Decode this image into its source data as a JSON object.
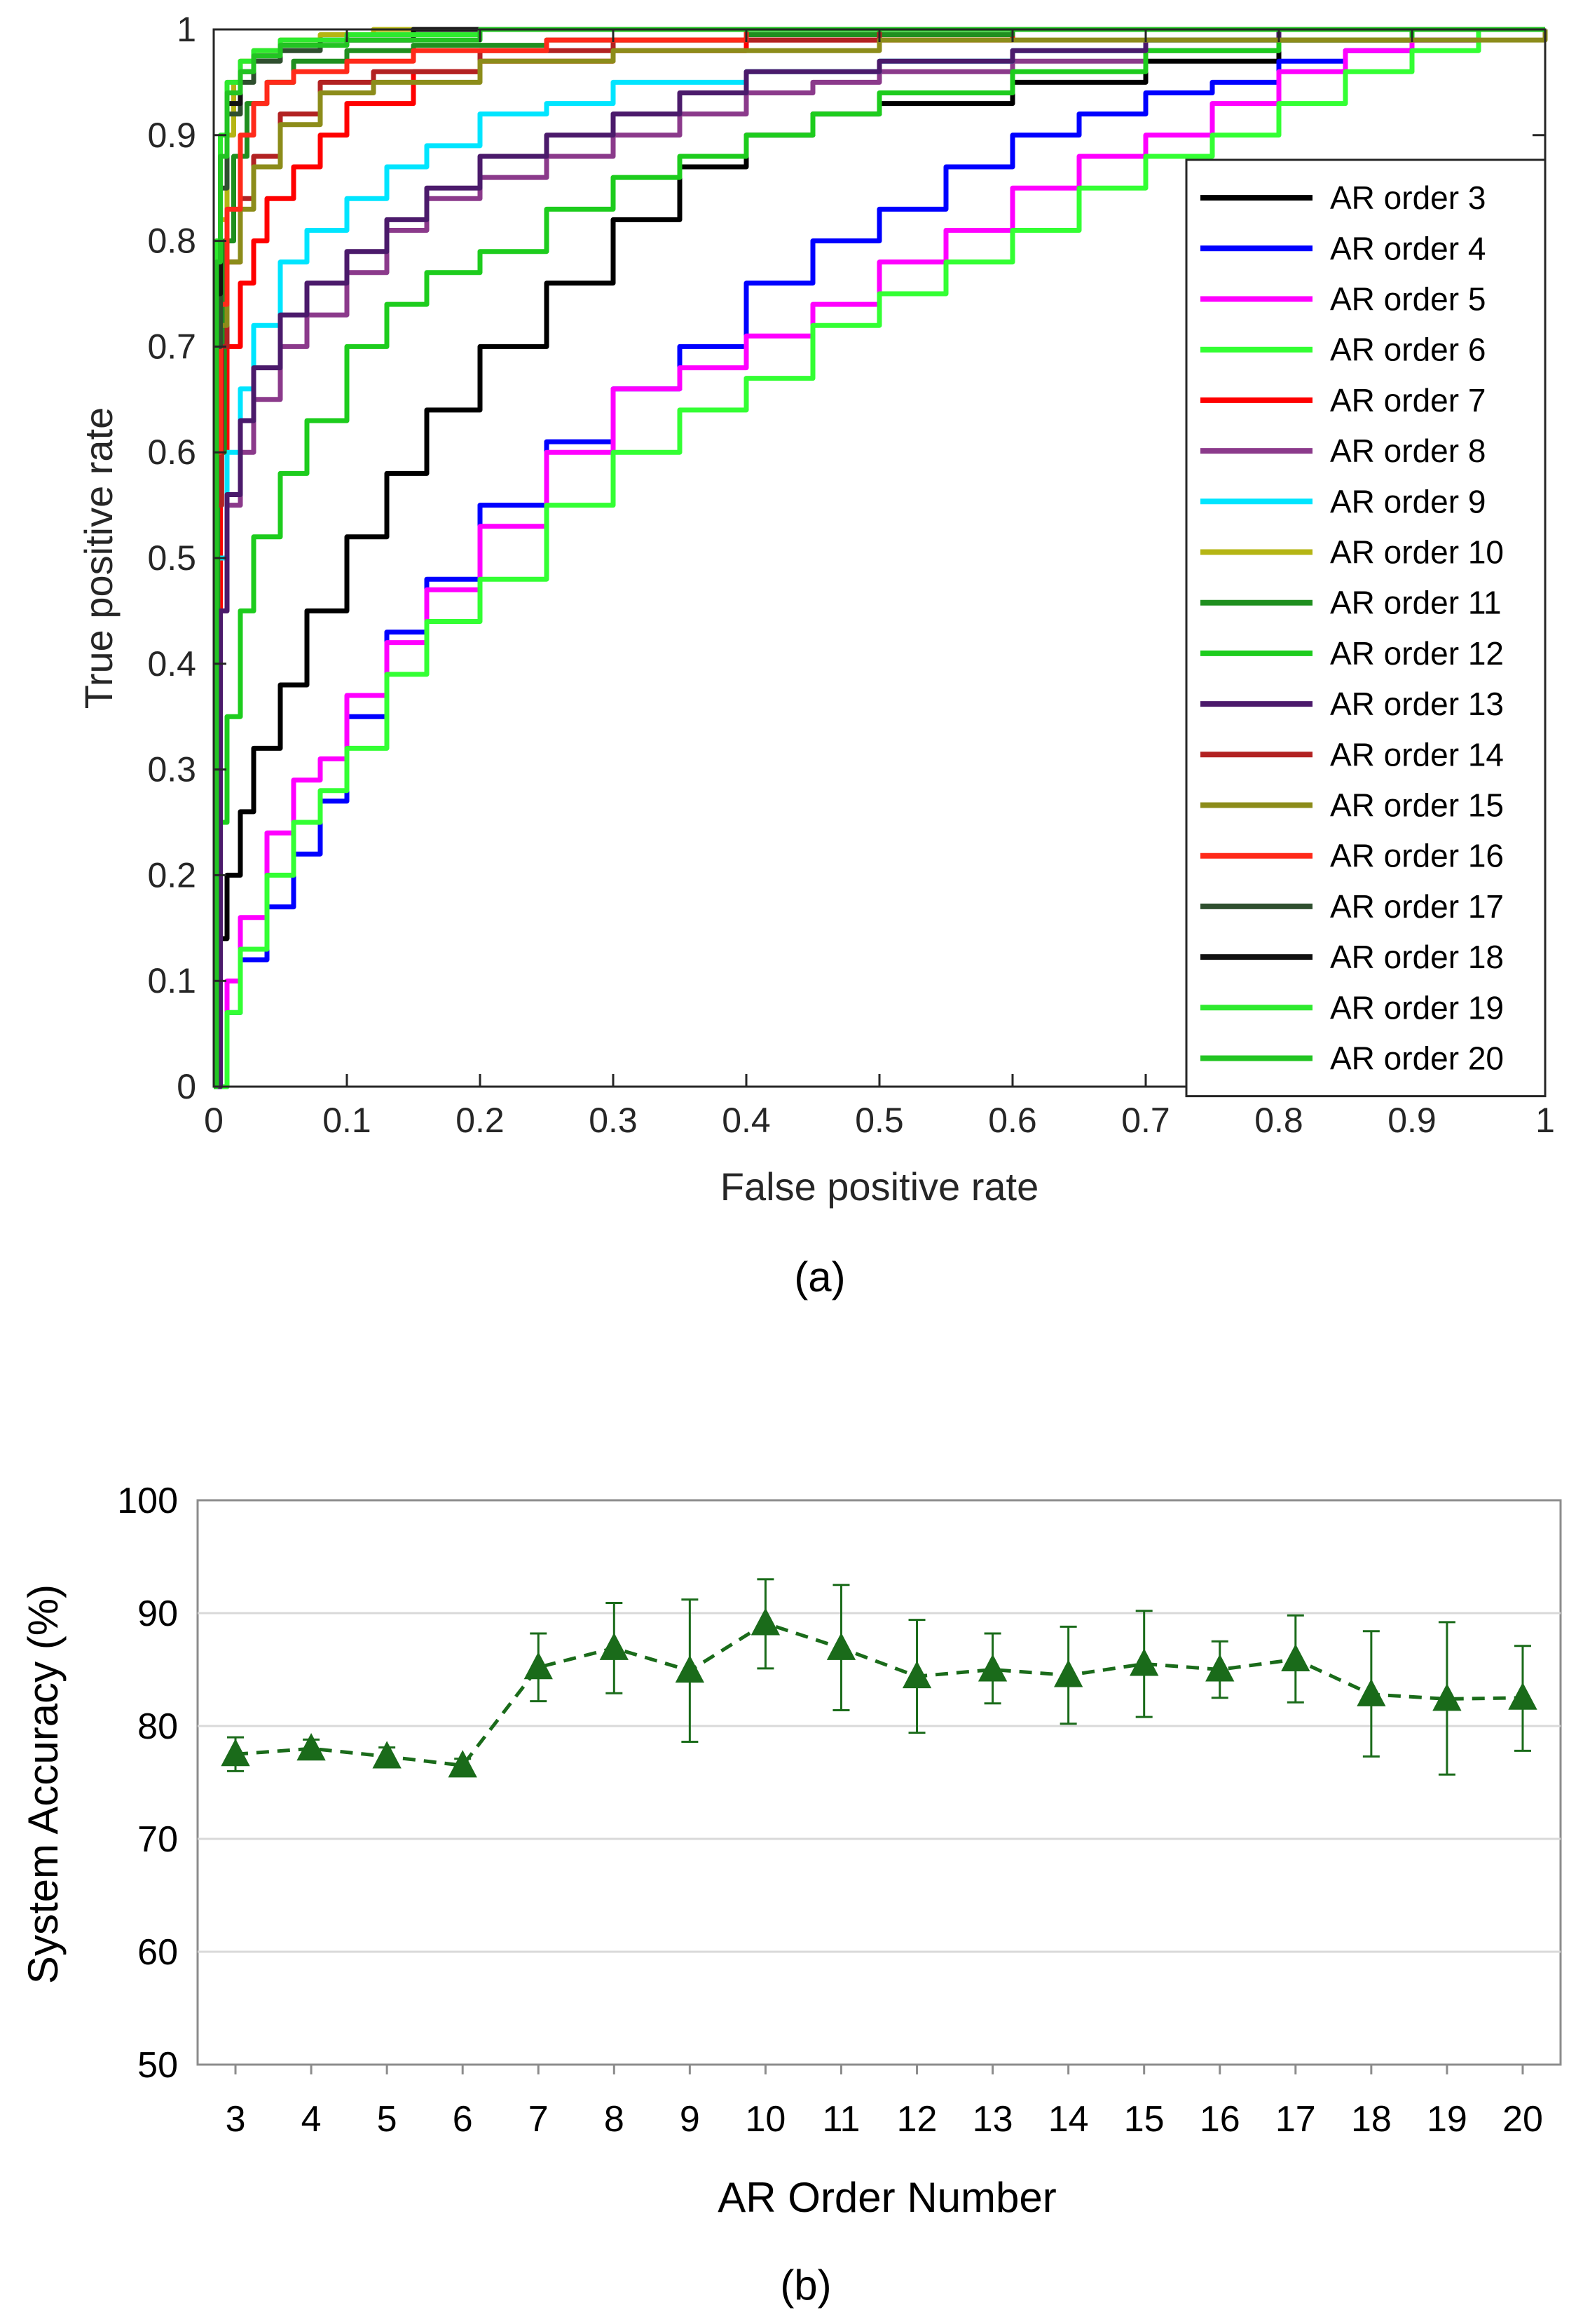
{
  "chart_data": [
    {
      "type": "line",
      "subtype": "roc",
      "caption": "(a)",
      "xlabel": "False positive rate",
      "ylabel": "True positive rate",
      "xlim": [
        0,
        1
      ],
      "ylim": [
        0,
        1
      ],
      "xticks": [
        "0",
        "0.1",
        "0.2",
        "0.3",
        "0.4",
        "0.5",
        "0.6",
        "0.7",
        "0.8",
        "0.9",
        "1"
      ],
      "yticks": [
        "0",
        "0.1",
        "0.2",
        "0.3",
        "0.4",
        "0.5",
        "0.6",
        "0.7",
        "0.8",
        "0.9",
        "1"
      ],
      "legend_position": "right",
      "series": [
        {
          "name": "AR order 3",
          "color": "#000000",
          "x": [
            0,
            0.002,
            0.01,
            0.02,
            0.03,
            0.05,
            0.07,
            0.1,
            0.13,
            0.16,
            0.2,
            0.25,
            0.3,
            0.35,
            0.4,
            0.45,
            0.5,
            0.6,
            0.7,
            0.8,
            0.9,
            1
          ],
          "y": [
            0,
            0.14,
            0.2,
            0.26,
            0.32,
            0.38,
            0.45,
            0.52,
            0.58,
            0.64,
            0.7,
            0.76,
            0.82,
            0.87,
            0.9,
            0.92,
            0.93,
            0.95,
            0.97,
            0.99,
            1,
            1
          ]
        },
        {
          "name": "AR order 4",
          "color": "#0000ff",
          "x": [
            0,
            0.01,
            0.02,
            0.04,
            0.06,
            0.08,
            0.1,
            0.13,
            0.16,
            0.2,
            0.25,
            0.3,
            0.35,
            0.4,
            0.45,
            0.5,
            0.55,
            0.6,
            0.65,
            0.7,
            0.75,
            0.8,
            0.85,
            0.9,
            0.95,
            1
          ],
          "y": [
            0,
            0.07,
            0.12,
            0.17,
            0.22,
            0.27,
            0.35,
            0.43,
            0.48,
            0.55,
            0.61,
            0.66,
            0.7,
            0.76,
            0.8,
            0.83,
            0.87,
            0.9,
            0.92,
            0.94,
            0.95,
            0.97,
            0.98,
            0.99,
            1,
            1
          ]
        },
        {
          "name": "AR order 5",
          "color": "#ff00ff",
          "x": [
            0,
            0.01,
            0.02,
            0.04,
            0.06,
            0.08,
            0.1,
            0.13,
            0.16,
            0.2,
            0.25,
            0.3,
            0.35,
            0.4,
            0.45,
            0.5,
            0.55,
            0.6,
            0.65,
            0.7,
            0.75,
            0.8,
            0.85,
            0.9,
            0.95,
            1
          ],
          "y": [
            0,
            0.1,
            0.16,
            0.24,
            0.29,
            0.31,
            0.37,
            0.42,
            0.47,
            0.53,
            0.6,
            0.66,
            0.68,
            0.71,
            0.74,
            0.78,
            0.81,
            0.85,
            0.88,
            0.9,
            0.93,
            0.96,
            0.98,
            0.99,
            1,
            1
          ]
        },
        {
          "name": "AR order 6",
          "color": "#33ff33",
          "x": [
            0,
            0.01,
            0.02,
            0.04,
            0.06,
            0.08,
            0.1,
            0.13,
            0.16,
            0.2,
            0.25,
            0.3,
            0.35,
            0.4,
            0.45,
            0.5,
            0.55,
            0.6,
            0.65,
            0.7,
            0.75,
            0.8,
            0.85,
            0.9,
            0.95,
            1
          ],
          "y": [
            0,
            0.07,
            0.13,
            0.2,
            0.25,
            0.28,
            0.32,
            0.39,
            0.44,
            0.48,
            0.55,
            0.6,
            0.64,
            0.67,
            0.72,
            0.75,
            0.78,
            0.81,
            0.85,
            0.88,
            0.9,
            0.93,
            0.96,
            0.98,
            1,
            1
          ]
        },
        {
          "name": "AR order 7",
          "color": "#ff0000",
          "x": [
            0,
            0.002,
            0.005,
            0.01,
            0.02,
            0.03,
            0.04,
            0.06,
            0.08,
            0.1,
            0.15,
            0.2,
            0.3,
            0.4,
            0.6,
            1
          ],
          "y": [
            0,
            0.45,
            0.6,
            0.7,
            0.76,
            0.8,
            0.84,
            0.87,
            0.9,
            0.93,
            0.96,
            0.97,
            0.98,
            0.99,
            1,
            1
          ]
        },
        {
          "name": "AR order 8",
          "color": "#8b3a8b",
          "x": [
            0,
            0.005,
            0.01,
            0.02,
            0.03,
            0.05,
            0.07,
            0.1,
            0.13,
            0.16,
            0.2,
            0.25,
            0.3,
            0.35,
            0.4,
            0.45,
            0.5,
            0.6,
            0.7,
            0.8,
            0.9,
            1
          ],
          "y": [
            0,
            0.45,
            0.55,
            0.6,
            0.65,
            0.7,
            0.73,
            0.77,
            0.81,
            0.84,
            0.86,
            0.88,
            0.9,
            0.92,
            0.94,
            0.95,
            0.96,
            0.97,
            0.98,
            0.99,
            1,
            1
          ]
        },
        {
          "name": "AR order 9",
          "color": "#00e5ff",
          "x": [
            0,
            0.003,
            0.01,
            0.02,
            0.03,
            0.05,
            0.07,
            0.1,
            0.13,
            0.16,
            0.2,
            0.25,
            0.3,
            0.4,
            0.5,
            0.6,
            0.7,
            0.8,
            1
          ],
          "y": [
            0,
            0.5,
            0.6,
            0.66,
            0.72,
            0.78,
            0.81,
            0.84,
            0.87,
            0.89,
            0.92,
            0.93,
            0.95,
            0.96,
            0.97,
            0.98,
            0.99,
            1,
            1
          ]
        },
        {
          "name": "AR order 10",
          "color": "#b5b514",
          "x": [
            0,
            0.002,
            0.005,
            0.01,
            0.015,
            0.02,
            0.03,
            0.05,
            0.08,
            0.12,
            0.2,
            0.4,
            1
          ],
          "y": [
            0,
            0.7,
            0.82,
            0.9,
            0.95,
            0.97,
            0.98,
            0.99,
            0.995,
            1,
            1,
            1,
            1
          ]
        },
        {
          "name": "AR order 11",
          "color": "#1f8f1f",
          "x": [
            0,
            0.003,
            0.008,
            0.015,
            0.025,
            0.04,
            0.06,
            0.1,
            0.15,
            0.25,
            0.4,
            0.6,
            1
          ],
          "y": [
            0,
            0.6,
            0.8,
            0.88,
            0.93,
            0.95,
            0.97,
            0.98,
            0.985,
            0.99,
            0.995,
            1,
            1
          ]
        },
        {
          "name": "AR order 12",
          "color": "#1dcc1d",
          "x": [
            0,
            0.005,
            0.01,
            0.02,
            0.03,
            0.05,
            0.07,
            0.1,
            0.13,
            0.16,
            0.2,
            0.25,
            0.3,
            0.35,
            0.4,
            0.45,
            0.5,
            0.6,
            0.7,
            0.8,
            0.9,
            1
          ],
          "y": [
            0,
            0.25,
            0.35,
            0.45,
            0.52,
            0.58,
            0.63,
            0.7,
            0.74,
            0.77,
            0.79,
            0.83,
            0.86,
            0.88,
            0.9,
            0.92,
            0.94,
            0.96,
            0.98,
            0.99,
            1,
            1
          ]
        },
        {
          "name": "AR order 13",
          "color": "#4b1a6b",
          "x": [
            0,
            0.005,
            0.01,
            0.02,
            0.03,
            0.05,
            0.07,
            0.1,
            0.13,
            0.16,
            0.2,
            0.25,
            0.3,
            0.35,
            0.4,
            0.5,
            0.6,
            0.7,
            0.8,
            1
          ],
          "y": [
            0,
            0.45,
            0.56,
            0.63,
            0.68,
            0.73,
            0.76,
            0.79,
            0.82,
            0.85,
            0.88,
            0.9,
            0.92,
            0.94,
            0.96,
            0.97,
            0.98,
            0.99,
            1,
            1
          ]
        },
        {
          "name": "AR order 14",
          "color": "#b22222",
          "x": [
            0,
            0.002,
            0.006,
            0.01,
            0.02,
            0.03,
            0.05,
            0.08,
            0.12,
            0.2,
            0.3,
            0.5,
            1
          ],
          "y": [
            0,
            0.55,
            0.7,
            0.78,
            0.84,
            0.88,
            0.92,
            0.95,
            0.96,
            0.98,
            0.99,
            1,
            1
          ]
        },
        {
          "name": "AR order 15",
          "color": "#8c8c1a",
          "x": [
            0,
            0.002,
            0.005,
            0.01,
            0.02,
            0.03,
            0.05,
            0.08,
            0.12,
            0.2,
            0.3,
            0.5,
            1
          ],
          "y": [
            0,
            0.62,
            0.72,
            0.78,
            0.83,
            0.87,
            0.91,
            0.94,
            0.95,
            0.97,
            0.98,
            0.99,
            1
          ]
        },
        {
          "name": "AR order 16",
          "color": "#ff2a1a",
          "x": [
            0,
            0.002,
            0.005,
            0.01,
            0.02,
            0.03,
            0.04,
            0.06,
            0.1,
            0.15,
            0.25,
            0.4,
            1
          ],
          "y": [
            0,
            0.6,
            0.74,
            0.83,
            0.9,
            0.93,
            0.95,
            0.96,
            0.97,
            0.98,
            0.99,
            1,
            1
          ]
        },
        {
          "name": "AR order 17",
          "color": "#2f4f2f",
          "x": [
            0,
            0.002,
            0.005,
            0.01,
            0.02,
            0.03,
            0.05,
            0.08,
            0.15,
            0.3,
            1
          ],
          "y": [
            0,
            0.7,
            0.85,
            0.92,
            0.95,
            0.97,
            0.98,
            0.99,
            1,
            1,
            1
          ]
        },
        {
          "name": "AR order 18",
          "color": "#111111",
          "x": [
            0,
            0.002,
            0.005,
            0.01,
            0.02,
            0.03,
            0.05,
            0.08,
            0.15,
            0.3,
            1
          ],
          "y": [
            0,
            0.75,
            0.88,
            0.93,
            0.96,
            0.975,
            0.985,
            0.99,
            1,
            1,
            1
          ]
        },
        {
          "name": "AR order 19",
          "color": "#2eea2e",
          "x": [
            0,
            0.002,
            0.005,
            0.01,
            0.02,
            0.03,
            0.05,
            0.1,
            0.2,
            1
          ],
          "y": [
            0,
            0.8,
            0.9,
            0.95,
            0.97,
            0.98,
            0.99,
            0.995,
            1,
            1
          ]
        },
        {
          "name": "AR order 20",
          "color": "#22c422",
          "x": [
            0,
            0.002,
            0.005,
            0.01,
            0.02,
            0.03,
            0.05,
            0.1,
            0.2,
            1
          ],
          "y": [
            0,
            0.78,
            0.88,
            0.94,
            0.96,
            0.975,
            0.985,
            0.99,
            1,
            1
          ]
        }
      ]
    },
    {
      "type": "line",
      "subtype": "errorbar",
      "caption": "(b)",
      "xlabel": "AR Order Number",
      "ylabel": "System Accuracy (%)",
      "ylim": [
        50,
        100
      ],
      "yticks": [
        "50",
        "60",
        "70",
        "80",
        "90",
        "100"
      ],
      "grid": true,
      "categories": [
        "3",
        "4",
        "5",
        "6",
        "7",
        "8",
        "9",
        "10",
        "11",
        "12",
        "13",
        "14",
        "15",
        "16",
        "17",
        "18",
        "19",
        "20"
      ],
      "series": [
        {
          "name": "System Accuracy",
          "color": "#1a6b1a",
          "marker": "triangle",
          "linestyle": "dashed",
          "values": [
            77.5,
            78.0,
            77.3,
            76.5,
            85.2,
            86.9,
            84.9,
            89.1,
            86.9,
            84.4,
            85.0,
            84.5,
            85.5,
            85.0,
            85.9,
            82.8,
            82.4,
            82.5
          ],
          "err_low": [
            1.5,
            0.8,
            0.8,
            0.6,
            3.0,
            4.0,
            6.3,
            4.0,
            5.5,
            5.0,
            3.0,
            4.3,
            4.7,
            2.5,
            3.8,
            5.5,
            6.7,
            4.7
          ],
          "err_high": [
            1.5,
            0.8,
            0.8,
            0.6,
            3.0,
            4.0,
            6.3,
            3.9,
            5.6,
            5.0,
            3.2,
            4.3,
            4.7,
            2.5,
            3.9,
            5.6,
            6.8,
            4.6
          ]
        }
      ]
    }
  ]
}
